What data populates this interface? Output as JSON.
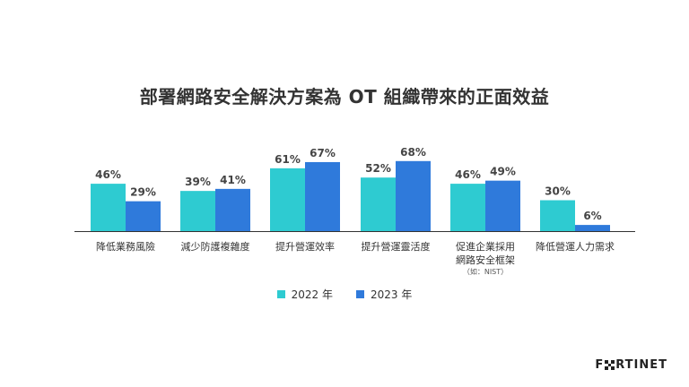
{
  "chart_data": {
    "type": "bar",
    "title": "部署網路安全解決方案為 OT 組織帶來的正面效益",
    "categories": [
      "降低業務風險",
      "減少防護複雜度",
      "提升營運效率",
      "提升營運靈活度",
      "促進企業採用網路安全框架",
      "降低營運人力需求"
    ],
    "category_notes": [
      "",
      "",
      "",
      "",
      "（如：NIST）",
      ""
    ],
    "series": [
      {
        "name": "2022 年",
        "values": [
          46,
          39,
          61,
          52,
          46,
          30
        ],
        "color": "#2ECBD1"
      },
      {
        "name": "2023 年",
        "values": [
          29,
          41,
          67,
          68,
          49,
          6
        ],
        "color": "#2F7ADB"
      }
    ],
    "value_suffix": "%",
    "ylim": [
      0,
      100
    ],
    "legend_position": "bottom",
    "grid": false
  },
  "logo": {
    "text_left": "F",
    "text_right": "RTINET"
  }
}
